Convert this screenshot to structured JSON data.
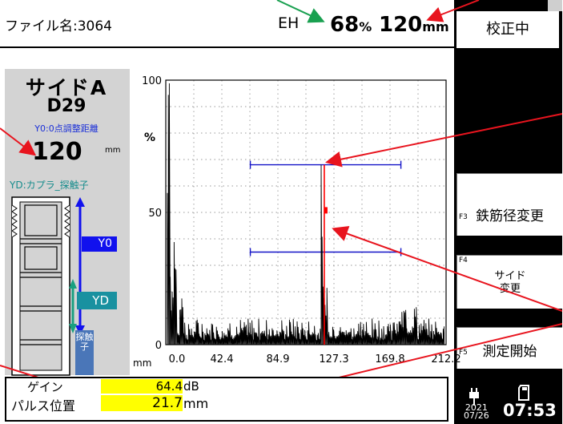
{
  "header": {
    "filename": "ファイル名:3064",
    "mode": "EH",
    "gate_percent": "68",
    "gate_percent_unit": "%",
    "gate_distance": "120",
    "gate_distance_unit": "mm",
    "status": "校正中"
  },
  "left_panel": {
    "side_title": "サイドA",
    "rebar": "D29",
    "y0_label": "Y0:0点調整距離",
    "y0_value": "120",
    "y0_unit": "mm",
    "yd_label": "YD:カプラ_探触子",
    "y0_badge": "Y0",
    "yd_badge": "YD",
    "probe_text": "探触子"
  },
  "chart_data": {
    "type": "line",
    "title": "",
    "ylabel": "%",
    "xunit": "mm",
    "ylim": [
      0,
      100
    ],
    "xlim": [
      0.0,
      212.2
    ],
    "ytick_labels": [
      "100",
      "50",
      "0"
    ],
    "xtick_labels": [
      "0.0",
      "42.4",
      "84.9",
      "127.3",
      "169.8",
      "212.2"
    ],
    "grid": true,
    "gates": [
      {
        "name": "upper",
        "x_start": 64,
        "x_end": 178,
        "y": 68,
        "color": "#1414c8"
      },
      {
        "name": "lower",
        "x_start": 64,
        "x_end": 178,
        "y": 35,
        "color": "#1414c8"
      }
    ],
    "marker": {
      "x": 120,
      "y": 68,
      "color": "#ff0000"
    }
  },
  "gain": {
    "gain_label": "ゲイン",
    "gain_value": "64.4",
    "gain_unit": "dB",
    "pulse_label": "パルス位置",
    "pulse_value": "21.7",
    "pulse_unit": "mm"
  },
  "fkeys": [
    {
      "key": "F3",
      "label": "鉄筋径変更"
    },
    {
      "key": "F4",
      "label_line1": "サイド",
      "label_line2": "変更"
    },
    {
      "key": "F5",
      "label": "測定開始"
    }
  ],
  "clock": {
    "year": "2021",
    "date": "07/26",
    "time": "07:53"
  },
  "colors": {
    "annotation_red": "#e8141e",
    "annotation_green": "#19a050",
    "highlight_yellow": "#ffff00"
  },
  "icons": [
    "plug-icon",
    "sd-card-icon"
  ]
}
